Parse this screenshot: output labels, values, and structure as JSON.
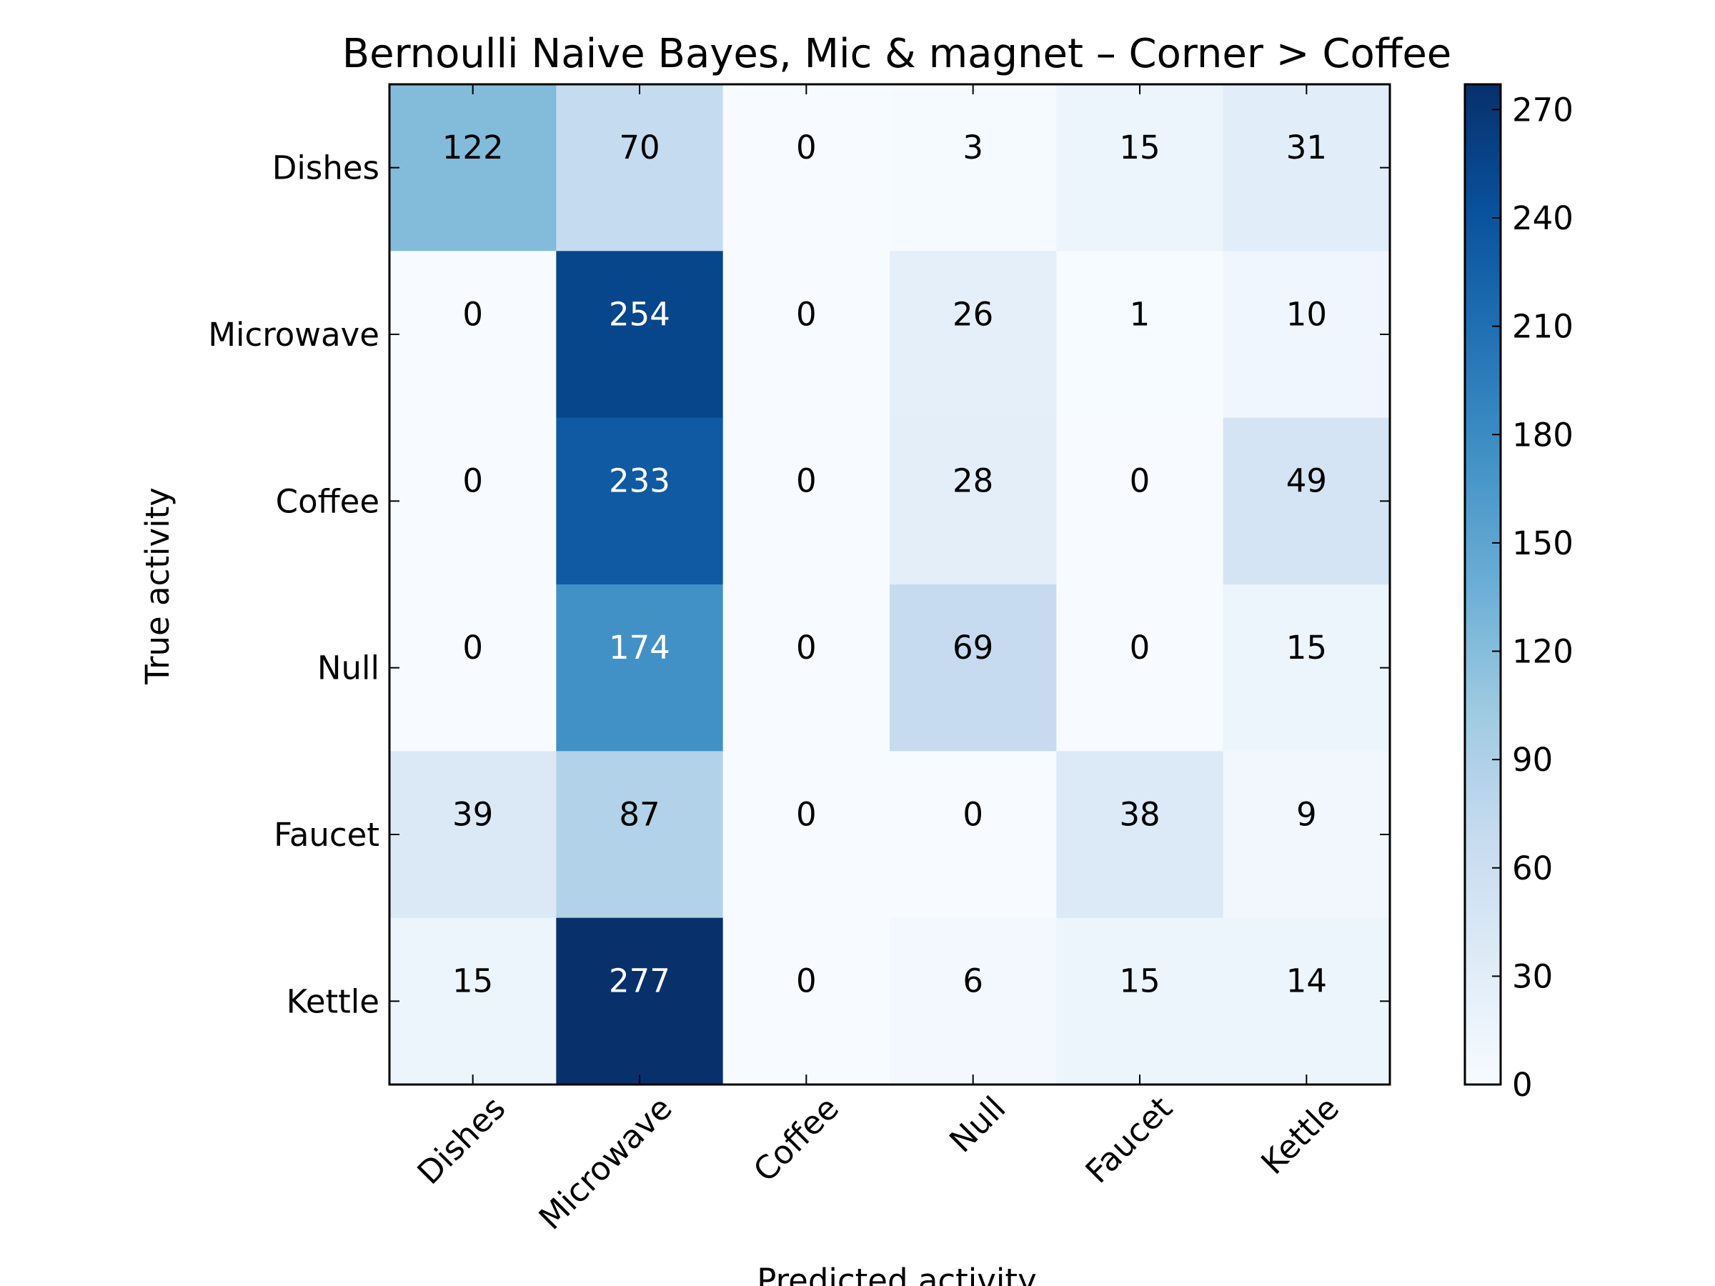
{
  "chart_data": {
    "type": "heatmap",
    "title": "Bernoulli Naive Bayes, Mic & magnet – Corner > Coffee",
    "xlabel": "Predicted activity",
    "ylabel": "True activity",
    "x_categories": [
      "Dishes",
      "Microwave",
      "Coffee",
      "Null",
      "Faucet",
      "Kettle"
    ],
    "y_categories": [
      "Dishes",
      "Microwave",
      "Coffee",
      "Null",
      "Faucet",
      "Kettle"
    ],
    "values": [
      [
        122,
        70,
        0,
        3,
        15,
        31
      ],
      [
        0,
        254,
        0,
        26,
        1,
        10
      ],
      [
        0,
        233,
        0,
        28,
        0,
        49
      ],
      [
        0,
        174,
        0,
        69,
        0,
        15
      ],
      [
        39,
        87,
        0,
        0,
        38,
        9
      ],
      [
        15,
        277,
        0,
        6,
        15,
        14
      ]
    ],
    "colorbar": {
      "colormap": "Blues",
      "vmin": 0,
      "vmax": 277,
      "ticks": [
        0,
        30,
        60,
        90,
        120,
        150,
        180,
        210,
        240,
        270
      ]
    },
    "colors": {
      "low": "#f7fbff",
      "high": "#08306b"
    }
  }
}
